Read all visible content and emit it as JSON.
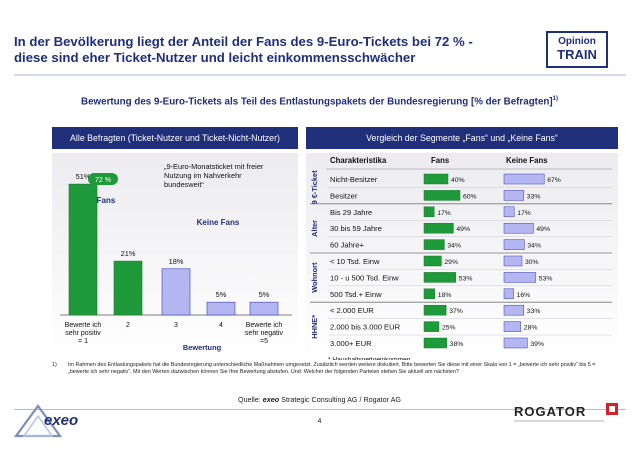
{
  "header": {
    "title_line1": "In der Bevölkerung liegt der Anteil der Fans des 9-Euro-Tickets bei 72 % -",
    "title_line2": "diese sind eher Ticket-Nutzer und leicht einkommensschwächer",
    "badge_line1": "Opinion",
    "badge_line2": "TRAIN"
  },
  "subtitle": "Bewertung des 9-Euro-Tickets als Teil des Entlastungspakets der Bundesregierung [% der Befragten]",
  "subtitle_sup": "1)",
  "colors": {
    "navy": "#1f2f7a",
    "green": "#1e9a3a",
    "lavender": "#b4b6f2",
    "lavender_stroke": "#3a3fae"
  },
  "chart_data": [
    {
      "type": "bar",
      "panel_title": "Alle Befragten (Ticket-Nutzer und Ticket-Nicht-Nutzer)",
      "categories": [
        "Bewerte ich sehr positiv = 1",
        "2",
        "3",
        "4",
        "Bewerte ich sehr negativ =5"
      ],
      "category_lines": [
        [
          "Bewerte ich",
          "sehr positiv",
          "= 1"
        ],
        [
          "2"
        ],
        [
          "3"
        ],
        [
          "4"
        ],
        [
          "Bewerte ich",
          "sehr negativ",
          "=5"
        ]
      ],
      "values": [
        51,
        21,
        18,
        5,
        5
      ],
      "value_labels": [
        "51%",
        "21%",
        "18%",
        "5%",
        "5%"
      ],
      "groups": [
        "fans",
        "fans",
        "keine",
        "keine",
        "keine"
      ],
      "xlabel": "Bewertung",
      "ylim": [
        0,
        60
      ],
      "group_label_fans": "Fans",
      "group_label_keine": "Keine Fans",
      "fans_badge": "72 %",
      "annotation_lines": [
        "„9-Euro-Monatsticket mit freier",
        "Nutzung im Nahverkehr",
        "bundesweit“"
      ]
    },
    {
      "type": "bar",
      "panel_title": "Vergleich der Segmente „Fans“ und „Keine Fans“",
      "col_header_char": "Charakteristika",
      "col_header_fans": "Fans",
      "col_header_keine": "Keine Fans",
      "xlim": [
        0,
        100
      ],
      "groups": [
        {
          "label": "9 €-Ticket",
          "rows": [
            0,
            1
          ]
        },
        {
          "label": "Alter",
          "rows": [
            2,
            3,
            4
          ]
        },
        {
          "label": "Wohnort",
          "rows": [
            5,
            6,
            7
          ]
        },
        {
          "label": "HHNE*",
          "rows": [
            8,
            9,
            10
          ]
        }
      ],
      "categories": [
        "Nicht-Besitzer",
        "Besitzer",
        "Bis 29 Jahre",
        "30 bis 59 Jahre",
        "60 Jahre+",
        "< 10 Tsd. Einw",
        "10 - u 500 Tsd. Einw",
        "500 Tsd.+ Einw",
        "< 2.000 EUR",
        "2.000 bis 3.000 EUR",
        "3.000+ EUR"
      ],
      "series": [
        {
          "name": "Fans",
          "values": [
            40,
            60,
            17,
            49,
            34,
            29,
            53,
            18,
            37,
            25,
            38
          ],
          "labels": [
            "40%",
            "60%",
            "17%",
            "49%",
            "34%",
            "29%",
            "53%",
            "18%",
            "37%",
            "25%",
            "38%"
          ]
        },
        {
          "name": "Keine Fans",
          "values": [
            67,
            33,
            17,
            49,
            34,
            30,
            53,
            16,
            33,
            28,
            39
          ],
          "labels": [
            "67%",
            "33%",
            "17%",
            "49%",
            "34%",
            "30%",
            "53%",
            "16%",
            "33%",
            "28%",
            "39%"
          ]
        }
      ],
      "note": "* Haushaltsnettoeinkommen"
    }
  ],
  "footnote": {
    "number": "1)",
    "text": "Im Rahmen des Entlastungspakets hat die Bundesregierung unterschiedliche Maßnahmen umgesetzt. Zusätzlich werden weitere diskutiert. Bitte bewerten Sie diese mit einer Skala von 1 = „bewerte ich sehr positiv“ bis 5 = „bewerte ich sehr negativ“. Mit den Werten dazwischen können Sie Ihre Bewertung abstufen. Und: Welcher der folgenden Parteien stehen Sie aktuell am nächsten?"
  },
  "source": {
    "prefix": "Quelle: ",
    "company": "exeo",
    "rest": " Strategic Consulting AG / Rogator AG"
  },
  "page_number": "4",
  "logos": {
    "left": "exeo",
    "right": "ROGATOR"
  }
}
